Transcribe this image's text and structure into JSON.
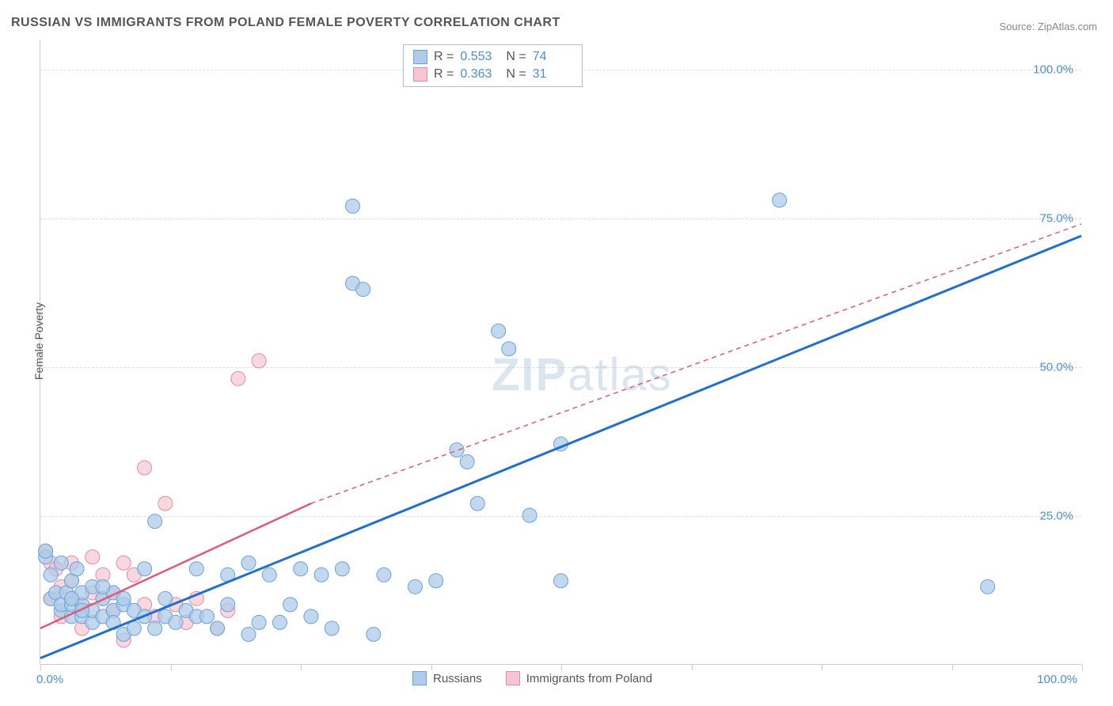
{
  "title": "RUSSIAN VS IMMIGRANTS FROM POLAND FEMALE POVERTY CORRELATION CHART",
  "source": "Source: ZipAtlas.com",
  "ylabel": "Female Poverty",
  "watermark_zip": "ZIP",
  "watermark_atlas": "atlas",
  "chart": {
    "type": "scatter",
    "xlim": [
      0,
      100
    ],
    "ylim": [
      0,
      105
    ],
    "y_ticks": [
      25,
      50,
      75,
      100
    ],
    "y_tick_labels": [
      "25.0%",
      "50.0%",
      "75.0%",
      "100.0%"
    ],
    "x_minor_ticks": [
      0,
      12.5,
      25,
      37.5,
      50,
      62.5,
      75,
      87.5,
      100
    ],
    "x_tick_label_left": "0.0%",
    "x_tick_label_right": "100.0%",
    "grid_color": "#dddddd",
    "axis_color": "#cccccc",
    "background_color": "#ffffff",
    "series": [
      {
        "name": "Russians",
        "label": "Russians",
        "R": "0.553",
        "N": "74",
        "marker_fill": "#aecbe8",
        "marker_stroke": "#6aa2d8",
        "marker_radius": 9,
        "marker_opacity": 0.75,
        "trend_color": "#1f6fd1",
        "trend_width": 3,
        "trend_dash": "none",
        "trend": {
          "x1": 0,
          "y1": 1,
          "x2": 100,
          "y2": 72
        },
        "trend_extrap": null,
        "points": [
          [
            0.5,
            18
          ],
          [
            0.5,
            19
          ],
          [
            1,
            15
          ],
          [
            1,
            11
          ],
          [
            1.5,
            12
          ],
          [
            2,
            17
          ],
          [
            2,
            9
          ],
          [
            2,
            10
          ],
          [
            2.5,
            12
          ],
          [
            3,
            8
          ],
          [
            3,
            14
          ],
          [
            3,
            10
          ],
          [
            3.5,
            16
          ],
          [
            4,
            8
          ],
          [
            4,
            10
          ],
          [
            4,
            12
          ],
          [
            5,
            7
          ],
          [
            5,
            9
          ],
          [
            5,
            13
          ],
          [
            6,
            8
          ],
          [
            6,
            11
          ],
          [
            7,
            9
          ],
          [
            7,
            12
          ],
          [
            7,
            7
          ],
          [
            8,
            10
          ],
          [
            8,
            11
          ],
          [
            8,
            5
          ],
          [
            9,
            6
          ],
          [
            9,
            9
          ],
          [
            10,
            8
          ],
          [
            10,
            16
          ],
          [
            11,
            24
          ],
          [
            11,
            6
          ],
          [
            12,
            8
          ],
          [
            12,
            11
          ],
          [
            13,
            7
          ],
          [
            14,
            9
          ],
          [
            15,
            16
          ],
          [
            15,
            8
          ],
          [
            16,
            8
          ],
          [
            17,
            6
          ],
          [
            18,
            10
          ],
          [
            18,
            15
          ],
          [
            20,
            17
          ],
          [
            20,
            5
          ],
          [
            21,
            7
          ],
          [
            22,
            15
          ],
          [
            23,
            7
          ],
          [
            24,
            10
          ],
          [
            25,
            16
          ],
          [
            26,
            8
          ],
          [
            27,
            15
          ],
          [
            28,
            6
          ],
          [
            29,
            16
          ],
          [
            30,
            64
          ],
          [
            30,
            77
          ],
          [
            31,
            63
          ],
          [
            32,
            5
          ],
          [
            33,
            15
          ],
          [
            36,
            13
          ],
          [
            38,
            14
          ],
          [
            40,
            36
          ],
          [
            41,
            34
          ],
          [
            42,
            27
          ],
          [
            44,
            56
          ],
          [
            45,
            53
          ],
          [
            47,
            25
          ],
          [
            50,
            37
          ],
          [
            50,
            14
          ],
          [
            71,
            78
          ],
          [
            3,
            11
          ],
          [
            4,
            9
          ],
          [
            6,
            13
          ],
          [
            91,
            13
          ]
        ]
      },
      {
        "name": "Immigrants from Poland",
        "label": "Immigrants from Poland",
        "R": "0.363",
        "N": "31",
        "marker_fill": "#f5c6d1",
        "marker_stroke": "#e28ba3",
        "marker_radius": 9,
        "marker_opacity": 0.7,
        "trend_color": "#e05a7a",
        "trend_width": 2.5,
        "trend_dash": "none",
        "trend": {
          "x1": 0,
          "y1": 6,
          "x2": 26,
          "y2": 27
        },
        "trend_extrap": {
          "x1": 26,
          "y1": 27,
          "x2": 100,
          "y2": 74,
          "dash": "6,5",
          "width": 1.5
        },
        "points": [
          [
            0.5,
            19
          ],
          [
            1,
            17
          ],
          [
            1,
            11
          ],
          [
            1.5,
            16
          ],
          [
            2,
            13
          ],
          [
            2,
            8
          ],
          [
            3,
            11
          ],
          [
            3,
            14
          ],
          [
            3,
            17
          ],
          [
            4,
            10
          ],
          [
            4,
            6
          ],
          [
            5,
            12
          ],
          [
            5,
            18
          ],
          [
            6,
            11
          ],
          [
            6,
            15
          ],
          [
            7,
            9
          ],
          [
            7,
            12
          ],
          [
            8,
            17
          ],
          [
            8,
            4
          ],
          [
            9,
            15
          ],
          [
            10,
            10
          ],
          [
            10,
            33
          ],
          [
            11,
            8
          ],
          [
            12,
            27
          ],
          [
            13,
            10
          ],
          [
            14,
            7
          ],
          [
            15,
            11
          ],
          [
            17,
            6
          ],
          [
            18,
            9
          ],
          [
            19,
            48
          ],
          [
            21,
            51
          ]
        ]
      }
    ]
  }
}
